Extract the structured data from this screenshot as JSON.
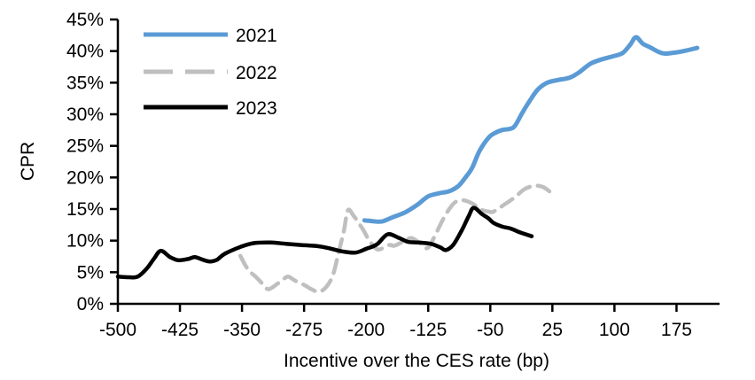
{
  "chart_data": {
    "type": "line",
    "title": "",
    "xlabel": "Incentive over the CES rate (bp)",
    "ylabel": "CPR",
    "xlim": [
      -500,
      227
    ],
    "ylim": [
      0,
      45
    ],
    "grid": false,
    "legend_position": "top-left-inside",
    "x_ticks": [
      -500,
      -425,
      -350,
      -275,
      -200,
      -125,
      -50,
      25,
      100,
      175
    ],
    "x_tick_labels": [
      "-500",
      "-425",
      "-350",
      "-275",
      "-200",
      "-125",
      "-50",
      "25",
      "100",
      "175"
    ],
    "y_ticks": [
      0,
      5,
      10,
      15,
      20,
      25,
      30,
      35,
      40,
      45
    ],
    "y_tick_labels": [
      "0%",
      "5%",
      "10%",
      "15%",
      "20%",
      "25%",
      "30%",
      "35%",
      "40%",
      "45%"
    ],
    "axis_color": "#000000",
    "series": [
      {
        "name": "2021",
        "color": "#5B9BD5",
        "line_style": "solid",
        "stroke_width": 5,
        "x": [
          -202,
          -193,
          -186,
          -179,
          -168,
          -154,
          -139,
          -125,
          -112,
          -100,
          -89,
          -80,
          -72,
          -63,
          -52,
          -45,
          -36,
          -26,
          -20,
          -11,
          0,
          8,
          19,
          31,
          46,
          57,
          71,
          85,
          99,
          110,
          119,
          126,
          134,
          143,
          153,
          161,
          175,
          187,
          200
        ],
        "y": [
          13.2,
          13.1,
          13.0,
          13.1,
          13.7,
          14.4,
          15.6,
          17.0,
          17.5,
          17.8,
          18.6,
          20.0,
          21.5,
          24.2,
          26.3,
          27.0,
          27.5,
          27.7,
          28.2,
          30.3,
          32.6,
          34.0,
          35.0,
          35.4,
          35.8,
          36.6,
          38.0,
          38.7,
          39.2,
          39.7,
          41.0,
          42.2,
          41.2,
          40.6,
          39.9,
          39.6,
          39.8,
          40.1,
          40.5
        ]
      },
      {
        "name": "2022",
        "color": "#BFBFBF",
        "line_style": "dashed",
        "stroke_width": 4.5,
        "x": [
          -352,
          -343,
          -332,
          -324,
          -318,
          -308,
          -300,
          -294,
          -285,
          -275,
          -266,
          -257,
          -248,
          -240,
          -233,
          -227,
          -222,
          -215,
          -204,
          -196,
          -186,
          -173,
          -166,
          -156,
          -145,
          -132,
          -125,
          -115,
          -107,
          -98,
          -91,
          -83,
          -72,
          -61,
          -52,
          -46,
          -32,
          -20,
          -8,
          5,
          15,
          25
        ],
        "y": [
          7.6,
          5.5,
          4.1,
          3.0,
          2.3,
          3.1,
          3.9,
          4.3,
          3.6,
          3.0,
          2.3,
          1.9,
          2.7,
          4.6,
          8.3,
          11.5,
          14.8,
          13.9,
          11.8,
          10.0,
          8.6,
          9.3,
          9.2,
          9.8,
          10.4,
          9.3,
          8.9,
          11.3,
          13.4,
          15.3,
          16.2,
          16.4,
          15.9,
          14.9,
          14.6,
          14.6,
          15.8,
          16.9,
          18.2,
          18.7,
          18.4,
          17.4
        ]
      },
      {
        "name": "2023",
        "color": "#000000",
        "line_style": "solid",
        "stroke_width": 4.5,
        "x": [
          -500,
          -487,
          -476,
          -465,
          -456,
          -448,
          -437,
          -427,
          -415,
          -407,
          -398,
          -389,
          -380,
          -371,
          -352,
          -336,
          -315,
          -297,
          -277,
          -257,
          -245,
          -229,
          -213,
          -200,
          -187,
          -174,
          -160,
          -149,
          -136,
          -122,
          -110,
          -104,
          -95,
          -85,
          -76,
          -70,
          -60,
          -52,
          -46,
          -35,
          -25,
          -14,
          0
        ],
        "y": [
          4.3,
          4.2,
          4.3,
          5.6,
          7.2,
          8.4,
          7.4,
          6.9,
          7.1,
          7.4,
          7.0,
          6.7,
          7.0,
          7.9,
          9.0,
          9.6,
          9.7,
          9.5,
          9.3,
          9.1,
          8.8,
          8.3,
          8.1,
          8.7,
          9.4,
          11.0,
          10.4,
          9.8,
          9.7,
          9.5,
          8.9,
          8.5,
          9.3,
          11.5,
          13.9,
          15.2,
          14.2,
          13.5,
          12.8,
          12.2,
          11.9,
          11.3,
          10.7
        ]
      }
    ]
  },
  "legend": {
    "items": [
      {
        "label": "2021"
      },
      {
        "label": "2022"
      },
      {
        "label": "2023"
      }
    ]
  },
  "axis_titles": {
    "y": "CPR",
    "x": "Incentive over the CES rate (bp)"
  }
}
